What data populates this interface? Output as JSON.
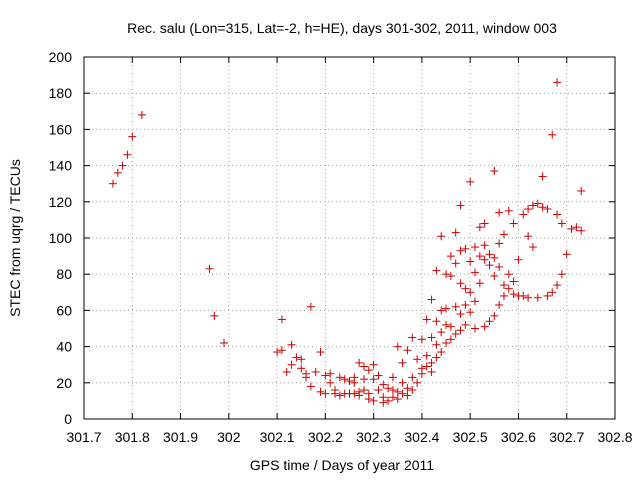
{
  "chart_data": {
    "type": "scatter",
    "title": "Rec. salu (Lon=315, Lat=-2, h=HE), days 301-302, 2011, window 003",
    "xlabel": "GPS time / Days of year 2011",
    "ylabel": "STEC from uqrg / TECUs",
    "xlim": [
      301.7,
      302.8
    ],
    "ylim": [
      0,
      200
    ],
    "x_ticks": [
      "301.7",
      "301.8",
      "301.9",
      "302",
      "302.1",
      "302.2",
      "302.3",
      "302.4",
      "302.5",
      "302.6",
      "302.7",
      "302.8"
    ],
    "y_ticks": [
      "0",
      "20",
      "40",
      "60",
      "80",
      "100",
      "120",
      "140",
      "160",
      "180",
      "200"
    ],
    "grid": true,
    "marker": "+",
    "marker_color": "#cc0000",
    "points": [
      [
        301.76,
        130
      ],
      [
        301.77,
        136
      ],
      [
        301.78,
        140
      ],
      [
        301.79,
        146
      ],
      [
        301.8,
        156
      ],
      [
        301.82,
        168
      ],
      [
        301.96,
        83
      ],
      [
        301.97,
        57
      ],
      [
        301.99,
        42
      ],
      [
        302.1,
        37
      ],
      [
        302.11,
        38
      ],
      [
        302.11,
        55
      ],
      [
        302.12,
        26
      ],
      [
        302.13,
        30
      ],
      [
        302.13,
        41
      ],
      [
        302.14,
        34
      ],
      [
        302.15,
        28
      ],
      [
        302.15,
        33
      ],
      [
        302.16,
        25
      ],
      [
        302.16,
        23
      ],
      [
        302.17,
        62
      ],
      [
        302.17,
        18
      ],
      [
        302.18,
        26
      ],
      [
        302.19,
        37
      ],
      [
        302.19,
        15
      ],
      [
        302.2,
        24
      ],
      [
        302.2,
        14
      ],
      [
        302.21,
        25
      ],
      [
        302.21,
        20
      ],
      [
        302.22,
        16
      ],
      [
        302.22,
        14
      ],
      [
        302.23,
        23
      ],
      [
        302.23,
        13
      ],
      [
        302.24,
        22
      ],
      [
        302.24,
        14
      ],
      [
        302.25,
        21
      ],
      [
        302.25,
        14
      ],
      [
        302.26,
        23
      ],
      [
        302.26,
        20
      ],
      [
        302.26,
        14
      ],
      [
        302.27,
        31
      ],
      [
        302.27,
        15
      ],
      [
        302.27,
        13
      ],
      [
        302.28,
        29
      ],
      [
        302.28,
        22
      ],
      [
        302.28,
        16
      ],
      [
        302.29,
        27
      ],
      [
        302.29,
        14
      ],
      [
        302.29,
        11
      ],
      [
        302.3,
        30
      ],
      [
        302.3,
        22
      ],
      [
        302.3,
        10
      ],
      [
        302.31,
        24
      ],
      [
        302.31,
        16
      ],
      [
        302.32,
        19
      ],
      [
        302.32,
        12
      ],
      [
        302.32,
        9
      ],
      [
        302.33,
        17
      ],
      [
        302.33,
        10
      ],
      [
        302.34,
        23
      ],
      [
        302.34,
        16
      ],
      [
        302.34,
        12
      ],
      [
        302.35,
        40
      ],
      [
        302.35,
        15
      ],
      [
        302.35,
        11
      ],
      [
        302.36,
        31
      ],
      [
        302.36,
        20
      ],
      [
        302.36,
        14
      ],
      [
        302.37,
        38
      ],
      [
        302.37,
        17
      ],
      [
        302.37,
        13
      ],
      [
        302.38,
        45
      ],
      [
        302.38,
        23
      ],
      [
        302.38,
        16
      ],
      [
        302.39,
        33
      ],
      [
        302.39,
        20
      ],
      [
        302.4,
        44
      ],
      [
        302.4,
        28
      ],
      [
        302.4,
        25
      ],
      [
        302.41,
        55
      ],
      [
        302.41,
        35
      ],
      [
        302.41,
        29
      ],
      [
        302.42,
        66
      ],
      [
        302.42,
        45
      ],
      [
        302.42,
        31
      ],
      [
        302.42,
        26
      ],
      [
        302.43,
        82
      ],
      [
        302.43,
        54
      ],
      [
        302.43,
        41
      ],
      [
        302.43,
        34
      ],
      [
        302.44,
        101
      ],
      [
        302.44,
        60
      ],
      [
        302.44,
        48
      ],
      [
        302.44,
        37
      ],
      [
        302.45,
        80
      ],
      [
        302.45,
        61
      ],
      [
        302.45,
        52
      ],
      [
        302.45,
        42
      ],
      [
        302.46,
        90
      ],
      [
        302.46,
        79
      ],
      [
        302.46,
        51
      ],
      [
        302.46,
        44
      ],
      [
        302.47,
        103
      ],
      [
        302.47,
        86
      ],
      [
        302.47,
        62
      ],
      [
        302.47,
        47
      ],
      [
        302.48,
        118
      ],
      [
        302.48,
        93
      ],
      [
        302.48,
        75
      ],
      [
        302.48,
        58
      ],
      [
        302.48,
        49
      ],
      [
        302.49,
        94
      ],
      [
        302.49,
        72
      ],
      [
        302.49,
        63
      ],
      [
        302.49,
        52
      ],
      [
        302.5,
        131
      ],
      [
        302.5,
        87
      ],
      [
        302.5,
        70
      ],
      [
        302.5,
        59
      ],
      [
        302.51,
        95
      ],
      [
        302.51,
        81
      ],
      [
        302.51,
        65
      ],
      [
        302.51,
        50
      ],
      [
        302.52,
        106
      ],
      [
        302.52,
        90
      ],
      [
        302.52,
        75
      ],
      [
        302.53,
        108
      ],
      [
        302.53,
        96
      ],
      [
        302.53,
        88
      ],
      [
        302.53,
        51
      ],
      [
        302.54,
        91
      ],
      [
        302.54,
        85
      ],
      [
        302.54,
        54
      ],
      [
        302.55,
        137
      ],
      [
        302.55,
        89
      ],
      [
        302.55,
        79
      ],
      [
        302.55,
        57
      ],
      [
        302.56,
        114
      ],
      [
        302.56,
        97
      ],
      [
        302.56,
        84
      ],
      [
        302.56,
        63
      ],
      [
        302.57,
        102
      ],
      [
        302.57,
        74
      ],
      [
        302.57,
        68
      ],
      [
        302.58,
        115
      ],
      [
        302.58,
        80
      ],
      [
        302.58,
        72
      ],
      [
        302.59,
        108
      ],
      [
        302.59,
        76
      ],
      [
        302.59,
        69
      ],
      [
        302.6,
        88
      ],
      [
        302.6,
        68
      ],
      [
        302.61,
        113
      ],
      [
        302.61,
        68
      ],
      [
        302.62,
        116
      ],
      [
        302.62,
        101
      ],
      [
        302.62,
        67
      ],
      [
        302.63,
        118
      ],
      [
        302.63,
        95
      ],
      [
        302.64,
        119
      ],
      [
        302.64,
        67
      ],
      [
        302.65,
        134
      ],
      [
        302.65,
        117
      ],
      [
        302.66,
        116
      ],
      [
        302.66,
        68
      ],
      [
        302.67,
        157
      ],
      [
        302.67,
        70
      ],
      [
        302.68,
        186
      ],
      [
        302.68,
        113
      ],
      [
        302.68,
        74
      ],
      [
        302.69,
        108
      ],
      [
        302.69,
        80
      ],
      [
        302.7,
        91
      ],
      [
        302.71,
        105
      ],
      [
        302.72,
        106
      ],
      [
        302.73,
        104
      ],
      [
        302.73,
        126
      ]
    ]
  }
}
